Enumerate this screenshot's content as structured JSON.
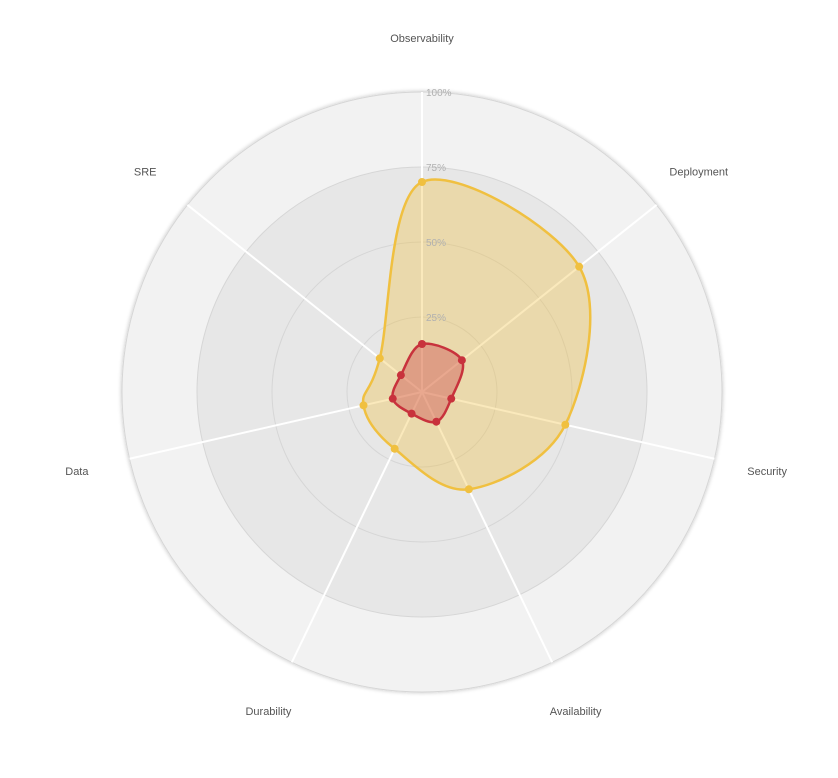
{
  "chart_data": {
    "type": "radar",
    "axes": [
      "Observability",
      "Deployment",
      "Security",
      "Availability",
      "Durability",
      "Data",
      "SRE"
    ],
    "rmax": 100,
    "ticks": [
      {
        "value": 25,
        "label": "25%"
      },
      {
        "value": 50,
        "label": "50%"
      },
      {
        "value": 75,
        "label": "75%"
      },
      {
        "value": 100,
        "label": "100%"
      }
    ],
    "series": [
      {
        "values": [
          70,
          67,
          49,
          36,
          21,
          20,
          18
        ],
        "color": "#f0c040"
      },
      {
        "values": [
          16,
          17,
          10,
          11,
          8,
          10,
          9
        ],
        "color": "#c8323c"
      }
    ],
    "legend": "none",
    "grid": true,
    "colors": {
      "band_outer": "#f2f2f2",
      "band_inner": "#e7e7e7",
      "ring_stroke": "#d6d6d6",
      "spoke": "#ffffff"
    }
  }
}
